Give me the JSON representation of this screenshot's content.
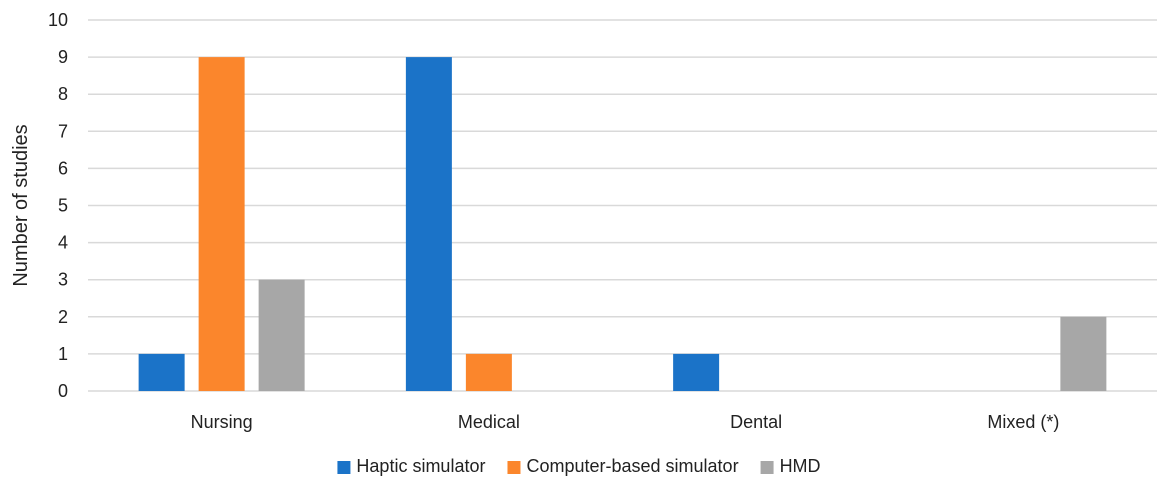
{
  "chart_data": {
    "type": "bar",
    "title": "",
    "xlabel": "",
    "ylabel": "Number of studies",
    "ylim": [
      0,
      10
    ],
    "yticks": [
      0,
      1,
      2,
      3,
      4,
      5,
      6,
      7,
      8,
      9,
      10
    ],
    "grid": true,
    "legend_position": "bottom",
    "categories": [
      "Nursing",
      "Medical",
      "Dental",
      "Mixed (*)"
    ],
    "series": [
      {
        "name": "Haptic simulator",
        "color": "#1b73c8",
        "values": [
          1,
          9,
          1,
          0
        ]
      },
      {
        "name": "Computer-based simulator",
        "color": "#fb862c",
        "values": [
          9,
          1,
          0,
          0
        ]
      },
      {
        "name": "HMD",
        "color": "#a7a7a7",
        "values": [
          3,
          0,
          0,
          2
        ]
      }
    ]
  }
}
